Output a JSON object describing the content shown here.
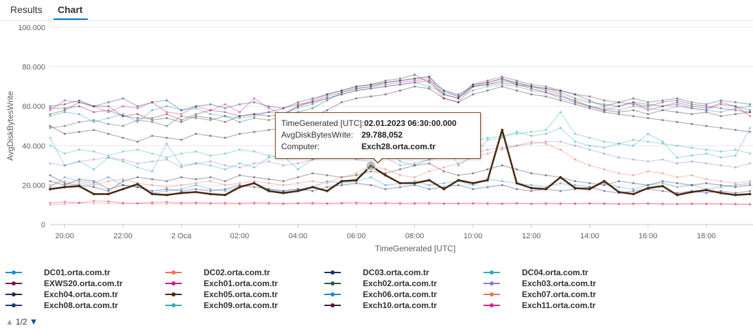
{
  "tabs": [
    {
      "label": "Results",
      "active": false
    },
    {
      "label": "Chart",
      "active": true
    }
  ],
  "tooltip": {
    "rows": [
      {
        "key": "TimeGenerated [UTC]:",
        "value": "02.01.2023 06:30:00.000"
      },
      {
        "key": "AvgDiskBytesWrite:",
        "value": "29.788,052"
      },
      {
        "key": "Computer:",
        "value": "Exch28.orta.com.tr"
      }
    ]
  },
  "pager": {
    "label": "1/2"
  },
  "chart_data": {
    "type": "line",
    "xlabel": "TimeGenerated [UTC]",
    "ylabel": "AvgDiskBytesWrite",
    "ylim": [
      0,
      100000
    ],
    "xlim_hours": [
      19.5,
      43.6
    ],
    "x_ticks": [
      {
        "h": 20,
        "label": "20:00"
      },
      {
        "h": 22,
        "label": "22:00"
      },
      {
        "h": 24,
        "label": "2 Oca"
      },
      {
        "h": 26,
        "label": "02:00"
      },
      {
        "h": 28,
        "label": "04:00"
      },
      {
        "h": 30,
        "label": "06:00"
      },
      {
        "h": 32,
        "label": "08:00"
      },
      {
        "h": 34,
        "label": "10:00"
      },
      {
        "h": 36,
        "label": "12:00"
      },
      {
        "h": 38,
        "label": "14:00"
      },
      {
        "h": 40,
        "label": "16:00"
      },
      {
        "h": 42,
        "label": "18:00"
      }
    ],
    "y_ticks": [
      {
        "v": 0,
        "label": "0"
      },
      {
        "v": 20000,
        "label": "20.000"
      },
      {
        "v": 40000,
        "label": "40.000"
      },
      {
        "v": 60000,
        "label": "60.000"
      },
      {
        "v": 80000,
        "label": "80.000"
      },
      {
        "v": 100000,
        "label": "100.000"
      }
    ],
    "grid": true,
    "legend_position": "bottom",
    "legend": [
      {
        "name": "DC01.orta.com.tr",
        "color": "#1b8fd1"
      },
      {
        "name": "DC02.orta.com.tr",
        "color": "#e8735a"
      },
      {
        "name": "DC03.orta.com.tr",
        "color": "#1a2e6e"
      },
      {
        "name": "DC04.orta.com.tr",
        "color": "#2ea9b8"
      },
      {
        "name": "EXWS20.orta.com.tr",
        "color": "#6a1b4d"
      },
      {
        "name": "Exch01.orta.com.tr",
        "color": "#d4158a"
      },
      {
        "name": "Exch02.orta.com.tr",
        "color": "#2a5448"
      },
      {
        "name": "Exch03.orta.com.tr",
        "color": "#8b7bd0"
      },
      {
        "name": "Exch04.orta.com.tr",
        "color": "#222a4e"
      },
      {
        "name": "Exch05.orta.com.tr",
        "color": "#4a2a10"
      },
      {
        "name": "Exch06.orta.com.tr",
        "color": "#1c8bc9"
      },
      {
        "name": "Exch07.orta.com.tr",
        "color": "#e8735a"
      },
      {
        "name": "Exch08.orta.com.tr",
        "color": "#1a3a7a"
      },
      {
        "name": "Exch09.orta.com.tr",
        "color": "#2fb1b3"
      },
      {
        "name": "Exch10.orta.com.tr",
        "color": "#4a1740"
      },
      {
        "name": "Exch11.orta.com.tr",
        "color": "#e0218a"
      }
    ],
    "highlight": {
      "name": "Exch28.orta.com.tr",
      "color": "#4a2a12",
      "x_hours": [
        19.5,
        20,
        20.5,
        21,
        21.5,
        22,
        22.5,
        23,
        23.5,
        24,
        24.5,
        25,
        25.5,
        26,
        26.5,
        27,
        27.5,
        28,
        28.5,
        29,
        29.5,
        30,
        30.5,
        31,
        31.5,
        32,
        32.5,
        33,
        33.5,
        34,
        34.5,
        35,
        35.5,
        36,
        36.5,
        37,
        37.5,
        38,
        38.5,
        39,
        39.5,
        40,
        40.5,
        41,
        41.5,
        42,
        42.5,
        43,
        43.5
      ],
      "values": [
        18000,
        19000,
        19500,
        15500,
        15500,
        18000,
        20500,
        15500,
        15000,
        16000,
        16500,
        15500,
        15000,
        19000,
        21000,
        17000,
        16000,
        17000,
        19000,
        17000,
        22000,
        22500,
        29788,
        25000,
        21000,
        21000,
        22500,
        18000,
        22500,
        21000,
        22500,
        48000,
        21000,
        18500,
        18000,
        24000,
        18500,
        18000,
        22000,
        16500,
        15500,
        18500,
        19500,
        15000,
        16500,
        17500,
        16000,
        15000,
        15500
      ]
    },
    "series": [
      {
        "name": "DC01.orta.com.tr",
        "color": "#1b8fd1",
        "values": [
          19000,
          24000,
          22000,
          21000,
          24000,
          20000,
          19000,
          16000,
          17000,
          18000,
          20000,
          18000,
          17000,
          19000,
          21000,
          18000,
          17000,
          18000,
          19000,
          22000,
          21000,
          22000,
          24000,
          20000,
          21000,
          22000,
          20000,
          21000,
          22000,
          20000,
          23000,
          22000,
          21000,
          20000,
          19000,
          21000,
          20000,
          19000,
          21000,
          19000,
          18000,
          20000,
          21000,
          19000,
          20000,
          18000,
          19000,
          20000,
          21000
        ]
      },
      {
        "name": "DC02.orta.com.tr",
        "color": "#e8735a",
        "values": [
          10000,
          10500,
          11000,
          10800,
          10900,
          10600,
          10700,
          10500,
          10600,
          10500,
          10600,
          10500,
          10400,
          10500,
          10600,
          10500,
          10500,
          10600,
          10500,
          10500,
          10600,
          10400,
          10500,
          10600,
          10500,
          10400,
          10500,
          10600,
          10500,
          10500,
          10400,
          10500,
          10600,
          10500,
          10400,
          10500,
          10600,
          10500,
          10500,
          10400,
          10500,
          10600,
          10500,
          10400,
          10500,
          10600,
          10500,
          10400,
          10300
        ]
      },
      {
        "name": "DC03.orta.com.tr",
        "color": "#1a2e6e",
        "values": [
          22000,
          20000,
          23000,
          22000,
          18000,
          20000,
          19000,
          17000,
          18000,
          17000,
          18000,
          17000,
          18000,
          20000,
          19000,
          18000,
          17000,
          18000,
          17000,
          19000,
          20000,
          21000,
          20000,
          18000,
          19000,
          20000,
          18000,
          19000,
          20000,
          18000,
          19000,
          20000,
          18000,
          17000,
          18000,
          17000,
          18000,
          19000,
          17000,
          16000,
          17000,
          18000,
          17000,
          16000,
          17000,
          16000,
          17000,
          16000,
          17000
        ]
      },
      {
        "name": "DC04.orta.com.tr",
        "color": "#2ea9b8",
        "values": [
          44000,
          30000,
          32000,
          28000,
          34000,
          32000,
          29000,
          27000,
          41000,
          30000,
          31000,
          30000,
          28000,
          31000,
          29000,
          34000,
          35000,
          28000,
          33000,
          42000,
          35000,
          36000,
          37000,
          39000,
          32000,
          30000,
          33000,
          42000,
          30000,
          35000,
          43000,
          44000,
          47000,
          45000,
          46000,
          49000,
          42000,
          40000,
          39000,
          41000,
          40000,
          46000,
          42000,
          34000,
          35000,
          36000,
          34000,
          35000,
          49000
        ]
      },
      {
        "name": "EXWS20.orta.com.tr",
        "color": "#6a1b4d",
        "values": [
          59000,
          59000,
          60000,
          57000,
          58000,
          55000,
          54000,
          54000,
          56000,
          53000,
          56000,
          58000,
          57000,
          55000,
          56000,
          57000,
          59000,
          61000,
          62000,
          64000,
          66000,
          68000,
          69000,
          70000,
          71000,
          72000,
          73000,
          68000,
          66000,
          70000,
          71000,
          72000,
          71000,
          70000,
          69000,
          68000,
          66000,
          65000,
          63000,
          62000,
          61000,
          60000,
          62000,
          63000,
          61000,
          60000,
          59000,
          58000,
          57000
        ]
      },
      {
        "name": "Exch01.orta.com.tr",
        "color": "#d4158a",
        "values": [
          58000,
          63000,
          62000,
          60000,
          57000,
          60000,
          59000,
          62000,
          57000,
          56000,
          60000,
          58000,
          61000,
          57000,
          64000,
          59000,
          56000,
          60000,
          62000,
          65000,
          67000,
          69000,
          70000,
          71000,
          72000,
          73000,
          74000,
          64000,
          62000,
          70000,
          72000,
          74000,
          72000,
          70000,
          68000,
          66000,
          62000,
          60000,
          58000,
          60000,
          62000,
          58000,
          60000,
          61000,
          59000,
          58000,
          62000,
          60000,
          55000
        ]
      },
      {
        "name": "Exch02.orta.com.tr",
        "color": "#2a5448",
        "values": [
          49000,
          50000,
          52000,
          53000,
          51000,
          50000,
          53000,
          52000,
          50000,
          55000,
          54000,
          53000,
          55000,
          52000,
          54000,
          53000,
          55000,
          57000,
          59000,
          63000,
          67000,
          69000,
          70000,
          72000,
          73000,
          74000,
          75000,
          66000,
          64000,
          70000,
          71000,
          73000,
          72000,
          70000,
          69000,
          67000,
          64000,
          62000,
          61000,
          60000,
          62000,
          61000,
          60000,
          62000,
          60000,
          59000,
          61000,
          60000,
          58000
        ]
      },
      {
        "name": "Exch03.orta.com.tr",
        "color": "#8b7bd0",
        "values": [
          31000,
          30000,
          32000,
          33000,
          34000,
          33000,
          31000,
          32000,
          33000,
          29000,
          31000,
          32000,
          30000,
          29000,
          31000,
          32000,
          30000,
          31000,
          33000,
          34000,
          35000,
          33000,
          32000,
          34000,
          30000,
          31000,
          33000,
          34000,
          35000,
          36000,
          38000,
          39000,
          40000,
          41000,
          42000,
          42000,
          40000,
          38000,
          36000,
          34000,
          33000,
          32000,
          33000,
          31000,
          32000,
          31000,
          30000,
          29000,
          31000
        ]
      },
      {
        "name": "Exch04.orta.com.tr",
        "color": "#222a4e",
        "values": [
          25000,
          21000,
          20000,
          19000,
          17000,
          22000,
          24000,
          23000,
          22000,
          24000,
          23000,
          24000,
          22000,
          25000,
          24000,
          23000,
          22000,
          24000,
          26000,
          25000,
          24000,
          25000,
          27000,
          26000,
          28000,
          30000,
          31000,
          27000,
          25000,
          26000,
          28000,
          30000,
          28000,
          26000,
          25000,
          24000,
          22000,
          21000,
          20000,
          22000,
          21000,
          20000,
          22000,
          21000,
          20000,
          21000,
          20000,
          19000,
          20000
        ]
      },
      {
        "name": "Exch05.orta.com.tr",
        "color": "#4a2a10",
        "values": [
          56000,
          58000,
          62000,
          60000,
          60000,
          55000,
          56000,
          53000,
          54000,
          52000,
          55000,
          54000,
          52000,
          55000,
          56000,
          55000,
          56000,
          60000,
          63000,
          66000,
          68000,
          70000,
          71000,
          73000,
          74000,
          76000,
          72000,
          66000,
          64000,
          71000,
          72000,
          74000,
          71000,
          69000,
          67000,
          65000,
          63000,
          60000,
          58000,
          57000,
          58000,
          56000,
          58000,
          57000,
          56000,
          57000,
          55000,
          56000,
          57000
        ]
      },
      {
        "name": "Exch06.orta.com.tr",
        "color": "#1c8bc9",
        "values": [
          55000,
          57000,
          56000,
          52000,
          54000,
          56000,
          52000,
          58000,
          60000,
          58000,
          59000,
          56000,
          55000,
          54000,
          55000,
          57000,
          56000,
          59000,
          61000,
          64000,
          66000,
          68000,
          69000,
          70000,
          71000,
          72000,
          70000,
          67000,
          65000,
          68000,
          70000,
          71000,
          70000,
          68000,
          67000,
          64000,
          62000,
          60000,
          59000,
          58000,
          60000,
          59000,
          58000,
          60000,
          59000,
          58000,
          57000,
          59000,
          60000
        ]
      },
      {
        "name": "Exch07.orta.com.tr",
        "color": "#e8735a",
        "values": [
          20000,
          22000,
          21000,
          20000,
          22000,
          23000,
          21000,
          20000,
          19000,
          20000,
          21000,
          22000,
          20000,
          21000,
          22000,
          21000,
          20000,
          21000,
          22000,
          21000,
          24000,
          26000,
          30000,
          28000,
          25000,
          24000,
          27000,
          29000,
          31000,
          34000,
          36000,
          38000,
          40000,
          42000,
          41000,
          38000,
          33000,
          30000,
          28000,
          26000,
          25000,
          27000,
          26000,
          24000,
          25000,
          23000,
          22000,
          21000,
          22000
        ]
      },
      {
        "name": "Exch08.orta.com.tr",
        "color": "#1a3a7a",
        "values": [
          60000,
          61000,
          63000,
          60000,
          62000,
          64000,
          60000,
          62000,
          63000,
          58000,
          60000,
          61000,
          59000,
          61000,
          62000,
          60000,
          59000,
          62000,
          64000,
          66000,
          68000,
          70000,
          71000,
          72000,
          73000,
          74000,
          75000,
          68000,
          65000,
          71000,
          73000,
          75000,
          73000,
          71000,
          70000,
          68000,
          66000,
          63000,
          60000,
          62000,
          64000,
          62000,
          63000,
          64000,
          62000,
          61000,
          63000,
          62000,
          61000
        ]
      },
      {
        "name": "Exch09.orta.com.tr",
        "color": "#2fb1b3",
        "values": [
          40000,
          36000,
          38000,
          37000,
          35000,
          37000,
          38000,
          36000,
          34000,
          36000,
          37000,
          35000,
          36000,
          38000,
          37000,
          35000,
          34000,
          36000,
          38000,
          40000,
          39000,
          41000,
          42000,
          40000,
          39000,
          41000,
          43000,
          40000,
          38000,
          42000,
          44000,
          45000,
          46000,
          47000,
          48000,
          57000,
          46000,
          44000,
          42000,
          41000,
          43000,
          42000,
          41000,
          40000,
          39000,
          38000,
          37000,
          38000,
          36000
        ]
      },
      {
        "name": "Exch10.orta.com.tr",
        "color": "#4a1740",
        "values": [
          50000,
          46000,
          47000,
          48000,
          46000,
          44000,
          42000,
          45000,
          44000,
          43000,
          46000,
          45000,
          44000,
          46000,
          47000,
          48000,
          49000,
          52000,
          55000,
          58000,
          62000,
          64000,
          65000,
          66000,
          68000,
          70000,
          69000,
          64000,
          62000,
          66000,
          68000,
          70000,
          68000,
          66000,
          65000,
          63000,
          61000,
          59000,
          57000,
          56000,
          55000,
          54000,
          53000,
          52000,
          51000,
          50000,
          49000,
          48000,
          47000
        ]
      },
      {
        "name": "Exch11.orta.com.tr",
        "color": "#e0218a",
        "values": [
          11000,
          11500,
          11000,
          12000,
          11800,
          11000,
          10800,
          11200,
          11500,
          11000,
          11200,
          10900,
          11000,
          10800,
          11100,
          11000,
          10700,
          10900,
          11000,
          10800,
          11000,
          11200,
          10900,
          11000,
          10800,
          10900,
          11000,
          10700,
          10800,
          10900,
          10800,
          10700,
          10900,
          10600,
          10800,
          10700,
          10600,
          10800,
          10700,
          10500,
          10600,
          10700,
          10500,
          10400,
          10600,
          10500,
          10400,
          10300,
          10200
        ]
      }
    ]
  }
}
